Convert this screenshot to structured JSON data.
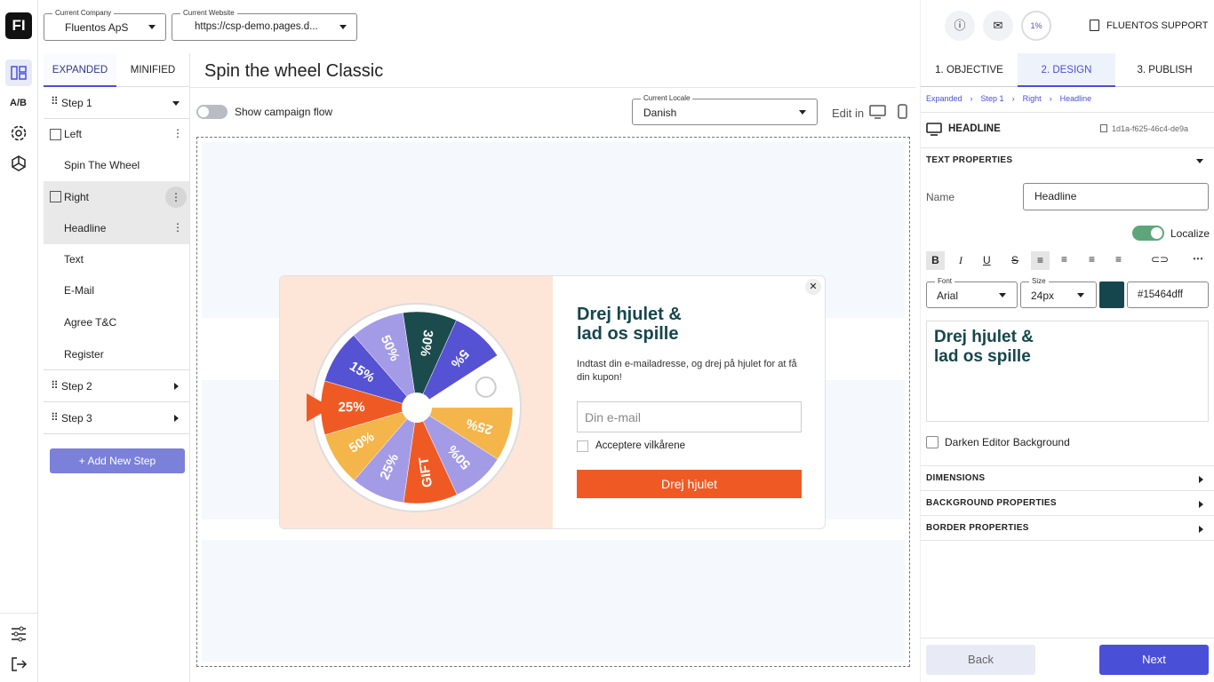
{
  "sidebar": {
    "logo": "FI",
    "ab": "A/B"
  },
  "header": {
    "company_label": "Current Company",
    "company": "Fluentos ApS",
    "website_label": "Current Website",
    "website": "https://csp-demo.pages.d...",
    "progress": "1%",
    "support": "FLUENTOS SUPPORT"
  },
  "tree": {
    "tabs": [
      "EXPANDED",
      "MINIFIED"
    ],
    "items": [
      "Step 1",
      "Left",
      "Spin The Wheel",
      "Right",
      "Headline",
      "Text",
      "E-Mail",
      "Agree T&C",
      "Register",
      "Step 2",
      "Step 3"
    ],
    "add": "+ Add New Step"
  },
  "editor": {
    "title": "Spin the wheel Classic",
    "toggle": "Show campaign flow",
    "locale_label": "Current Locale",
    "locale": "Danish",
    "edit_in": "Edit in"
  },
  "popup": {
    "headline": [
      "Drej hjulet &",
      "lad os spille"
    ],
    "text": "Indtast din e-mailadresse, og drej på hjulet for at få din kupon!",
    "email_placeholder": "Din e-mail",
    "accept": "Acceptere vilkårene",
    "button": "Drej hjulet",
    "wheel": [
      {
        "label": "30%",
        "color": "#1b4b4d"
      },
      {
        "label": "5%",
        "color": "#5552d4"
      },
      {
        "label": null,
        "color": "#ffffff"
      },
      {
        "label": "25%",
        "color": "#f4b54a"
      },
      {
        "label": "50%",
        "color": "#a49be6"
      },
      {
        "label": "GIFT",
        "color": "#ef5a24"
      },
      {
        "label": "25%",
        "color": "#a49be6"
      },
      {
        "label": "50%",
        "color": "#f4b54a"
      },
      {
        "label": "25%",
        "color": "#ef5a24"
      },
      {
        "label": "15%",
        "color": "#5552d4"
      },
      {
        "label": "50%",
        "color": "#a49be6"
      }
    ]
  },
  "panel": {
    "tabs": [
      "1. OBJECTIVE",
      "2. DESIGN",
      "3. PUBLISH"
    ],
    "breadcrumb": [
      "Expanded",
      "Step 1",
      "Right",
      "Headline"
    ],
    "element": "HEADLINE",
    "element_id": "1d1a-f625-46c4-de9a",
    "section": "TEXT PROPERTIES",
    "name_label": "Name",
    "name_value": "Headline",
    "localize": "Localize",
    "font_label": "Font",
    "font": "Arial",
    "size_label": "Size",
    "size": "24px",
    "color": "#15464dff",
    "preview": [
      "Drej hjulet &",
      "lad os spille"
    ],
    "darken": "Darken Editor Background",
    "sections": [
      "DIMENSIONS",
      "BACKGROUND PROPERTIES",
      "BORDER PROPERTIES"
    ],
    "back": "Back",
    "next": "Next"
  }
}
